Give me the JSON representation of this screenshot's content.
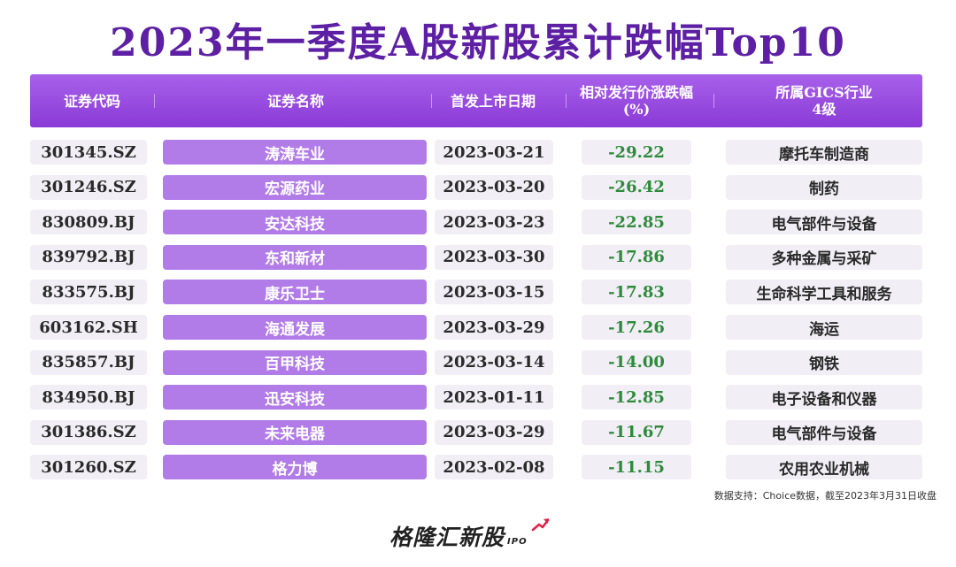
{
  "title": "2023年一季度A股新股累计跌幅Top10",
  "chart_data": {
    "type": "table",
    "columns": [
      "证券代码",
      "证券名称",
      "首发上市日期",
      "相对发行价涨跌幅\n(%)",
      "所属GICS行业\n4级"
    ],
    "rows": [
      {
        "code": "301345.SZ",
        "name": "涛涛车业",
        "date": "2023-03-21",
        "change": "-29.22",
        "industry": "摩托车制造商"
      },
      {
        "code": "301246.SZ",
        "name": "宏源药业",
        "date": "2023-03-20",
        "change": "-26.42",
        "industry": "制药"
      },
      {
        "code": "830809.BJ",
        "name": "安达科技",
        "date": "2023-03-23",
        "change": "-22.85",
        "industry": "电气部件与设备"
      },
      {
        "code": "839792.BJ",
        "name": "东和新材",
        "date": "2023-03-30",
        "change": "-17.86",
        "industry": "多种金属与采矿"
      },
      {
        "code": "833575.BJ",
        "name": "康乐卫士",
        "date": "2023-03-15",
        "change": "-17.83",
        "industry": "生命科学工具和服务"
      },
      {
        "code": "603162.SH",
        "name": "海通发展",
        "date": "2023-03-29",
        "change": "-17.26",
        "industry": "海运"
      },
      {
        "code": "835857.BJ",
        "name": "百甲科技",
        "date": "2023-03-14",
        "change": "-14.00",
        "industry": "钢铁"
      },
      {
        "code": "834950.BJ",
        "name": "迅安科技",
        "date": "2023-01-11",
        "change": "-12.85",
        "industry": "电子设备和仪器"
      },
      {
        "code": "301386.SZ",
        "name": "未来电器",
        "date": "2023-03-29",
        "change": "-11.67",
        "industry": "电气部件与设备"
      },
      {
        "code": "301260.SZ",
        "name": "格力博",
        "date": "2023-02-08",
        "change": "-11.15",
        "industry": "农用农业机械"
      }
    ]
  },
  "source": "数据支持：Choice数据，截至2023年3月31日收盘",
  "logo": {
    "main": "格隆汇新股",
    "sub": "IPO"
  },
  "colors": {
    "title": "#5d1fa3",
    "header": "#9b4ee2",
    "name_cell": "#b17be8",
    "cell_bg": "#f1eef5",
    "negative": "#2e8b3b",
    "logo_arrow": "#e0244a"
  }
}
